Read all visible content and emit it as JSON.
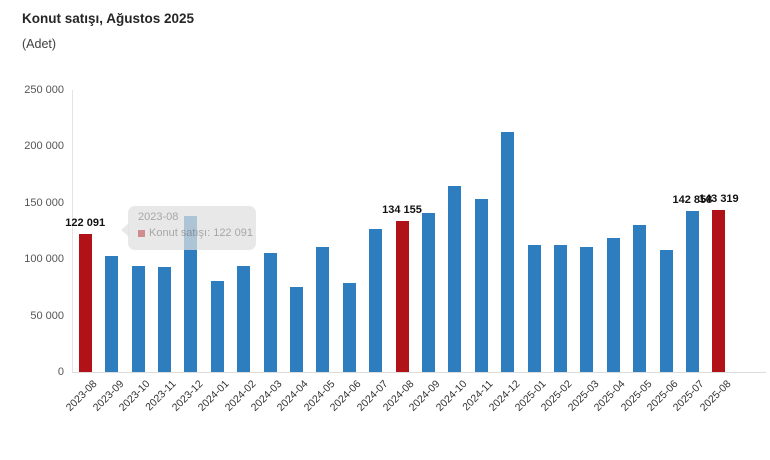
{
  "header": {
    "title": "Konut satışı, Ağustos 2025",
    "subtitle": "(Adet)"
  },
  "colors": {
    "bar": "#2e7dbe",
    "highlight": "#b11218",
    "axis": "#dcdcdc"
  },
  "chart_data": {
    "type": "bar",
    "title": "Konut satışı, Ağustos 2025",
    "subtitle": "(Adet)",
    "ylabel": "Adet",
    "xlabel": "",
    "grid": false,
    "legend": "none",
    "ylim": [
      0,
      250000
    ],
    "y_ticks": [
      0,
      50000,
      100000,
      150000,
      200000,
      250000
    ],
    "categories": [
      "2023-08",
      "2023-09",
      "2023-10",
      "2023-11",
      "2023-12",
      "2024-01",
      "2024-02",
      "2024-03",
      "2024-04",
      "2024-05",
      "2024-06",
      "2024-07",
      "2024-08",
      "2024-09",
      "2024-10",
      "2024-11",
      "2024-12",
      "2025-01",
      "2025-02",
      "2025-03",
      "2025-04",
      "2025-05",
      "2025-06",
      "2025-07",
      "2025-08"
    ],
    "values": [
      122091,
      102656,
      93761,
      93514,
      138577,
      80308,
      93902,
      105476,
      75569,
      110588,
      79313,
      127088,
      134155,
      140919,
      165138,
      153014,
      212637,
      112173,
      112818,
      110795,
      118359,
      130025,
      107723,
      142858,
      143319
    ],
    "highlight_indices": [
      0,
      12,
      24
    ],
    "labeled_indices": [
      0,
      12,
      23,
      24
    ],
    "visible_data_labels": [
      "122 091",
      "134 155",
      "142 858",
      "143 319"
    ]
  },
  "tooltip": {
    "header": "2023-08",
    "text": "Konut satışı: 122 091",
    "marker_color": "#b11218"
  }
}
